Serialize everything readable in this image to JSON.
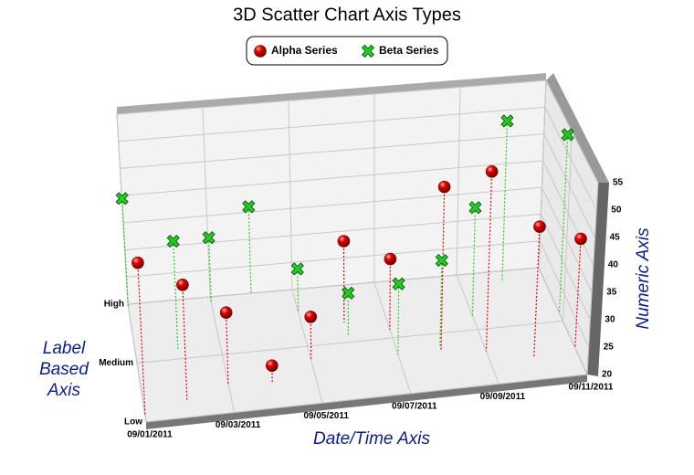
{
  "chart_data": {
    "type": "scatter3d",
    "title": "3D Scatter Chart Axis Types",
    "x_label": "Date/Time Axis",
    "y_label": "Numeric Axis",
    "z_label": "Label Based Axis",
    "x": [
      "09/01/2011",
      "09/02/2011",
      "09/03/2011",
      "09/04/2011",
      "09/05/2011",
      "09/06/2011",
      "09/07/2011",
      "09/08/2011",
      "09/09/2011",
      "09/10/2011",
      "09/11/2011"
    ],
    "xlim": [
      "09/01/2011",
      "09/11/2011"
    ],
    "xticks": [
      "09/01/2011",
      "09/03/2011",
      "09/05/2011",
      "09/07/2011",
      "09/09/2011",
      "09/11/2011"
    ],
    "ylim": [
      20,
      55
    ],
    "yticks": [
      20,
      25,
      30,
      35,
      40,
      45,
      50,
      55
    ],
    "zlim": [
      0,
      2
    ],
    "zticks": [
      {
        "value": 0,
        "label": "Low"
      },
      {
        "value": 1,
        "label": "Medium"
      },
      {
        "value": 2,
        "label": "High"
      }
    ],
    "grid": true,
    "series": [
      {
        "name": "Alpha Series",
        "color": "#dd0000",
        "marker": "sphere",
        "z": [
          0.1,
          0.3,
          0.5,
          0.45,
          0.75,
          1.35,
          1.15,
          0.7,
          0.6,
          0.4,
          0.5
        ],
        "values": [
          48,
          41,
          33,
          23,
          28,
          35,
          33,
          50,
          53,
          44,
          40
        ]
      },
      {
        "name": "Beta Series",
        "color": "#22cc22",
        "marker": "cross",
        "z": [
          1.95,
          1.15,
          1.9,
          2,
          1.6,
          1.1,
          0.7,
          0.75,
          1.25,
          1.8,
          1.15
        ],
        "values": [
          40,
          40,
          32,
          36,
          28,
          28,
          33,
          36,
          40,
          50,
          53
        ]
      }
    ]
  }
}
